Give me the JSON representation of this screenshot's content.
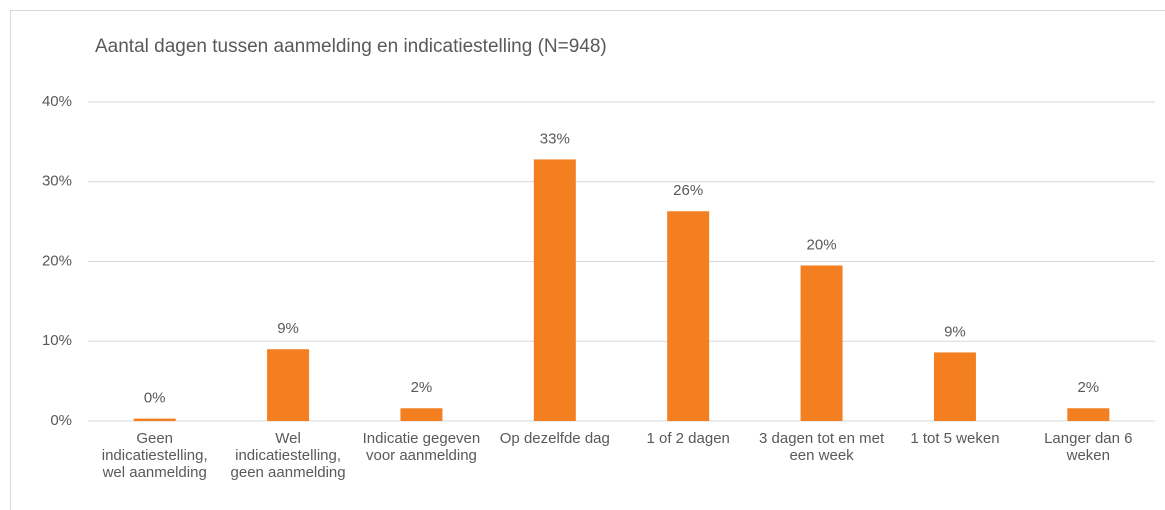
{
  "chart_data": {
    "type": "bar",
    "title": "Aantal dagen tussen aanmelding en indicatiestelling (N=948)",
    "categories": [
      "Geen indicatiestelling, wel aanmelding",
      "Wel indicatiestelling, geen aanmelding",
      "Indicatie gegeven voor aanmelding",
      "Op dezelfde dag",
      "1 of 2 dagen",
      "3 dagen tot en met een week",
      "1 tot 5 weken",
      "Langer dan 6 weken"
    ],
    "values": [
      0.3,
      9,
      1.6,
      32.8,
      26.3,
      19.5,
      8.6,
      1.6
    ],
    "value_labels": [
      "0%",
      "9%",
      "2%",
      "33%",
      "26%",
      "20%",
      "9%",
      "2%"
    ],
    "color": "#f47f20",
    "ylim": [
      0,
      40
    ],
    "yticks": [
      {
        "value": 0,
        "label": "0%"
      },
      {
        "value": 10,
        "label": "10%"
      },
      {
        "value": 20,
        "label": "20%"
      },
      {
        "value": 30,
        "label": "30%"
      },
      {
        "value": 40,
        "label": "40%"
      }
    ],
    "grid": true
  }
}
